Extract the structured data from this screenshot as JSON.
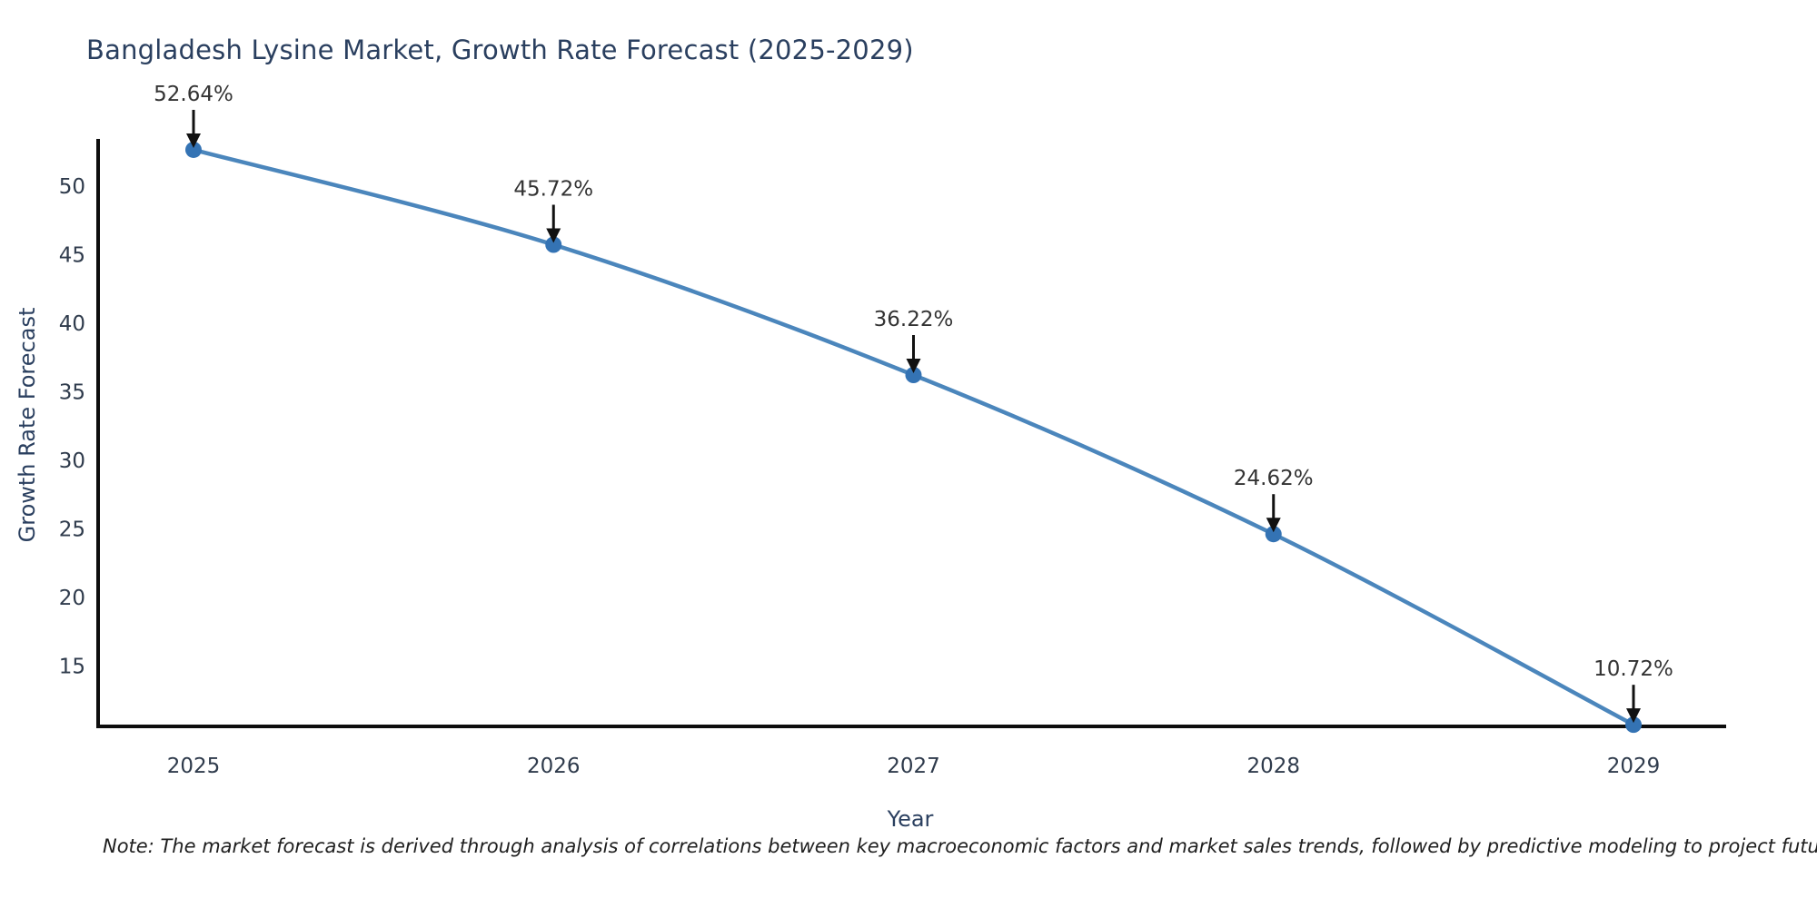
{
  "chart_data": {
    "type": "line",
    "title": "Bangladesh Lysine Market, Growth Rate Forecast (2025-2029)",
    "xlabel": "Year",
    "ylabel": "Growth Rate Forecast",
    "x": [
      "2025",
      "2026",
      "2027",
      "2028",
      "2029"
    ],
    "values": [
      52.64,
      45.72,
      36.22,
      24.62,
      10.72
    ],
    "point_labels": [
      "52.64%",
      "45.72%",
      "36.22%",
      "24.62%",
      "10.72%"
    ],
    "yticks": [
      15,
      20,
      25,
      30,
      35,
      40,
      45,
      50
    ],
    "ylim": [
      10.6,
      53.3
    ],
    "grid": false,
    "legend": "none",
    "line_color": "#4b86bc",
    "marker_color": "#3473b4",
    "axis_color": "#0d0d0d",
    "arrow_color": "#111111",
    "title_color": "#2a3f5f",
    "tick_color": "#2f3b4c",
    "annotation_color": "#333333",
    "note_color": "#1f1f1f"
  },
  "note": "Note: The market forecast is derived through analysis of correlations between key macroeconomic factors and market sales trends, followed by predictive modeling to project future sales"
}
